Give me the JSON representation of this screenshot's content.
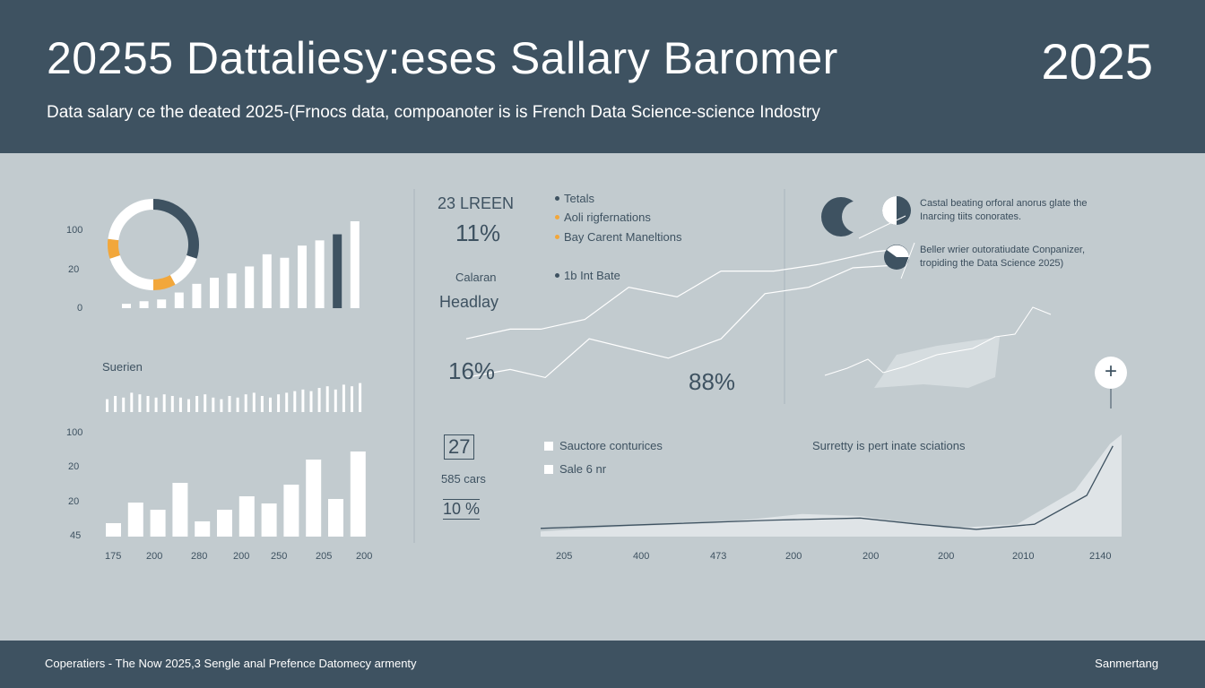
{
  "header": {
    "title": "20255 Dattaliesy:eses Sallary Baromer",
    "year": "2025",
    "subtitle": "Data salary ce the deated 2025-(Frnocs data, compoanoter is is French Data Science-science Indostry"
  },
  "footer": {
    "left": "Coperatiers - The Now 2025,3 Sengle anal Prefence Datomecy armenty",
    "right": "Sanmertang"
  },
  "colors": {
    "header_bg": "#3e5261",
    "page_bg": "#c2cbcf",
    "bar_white": "#ffffff",
    "bar_dark": "#3e5261",
    "accent_orange": "#f2a73b"
  },
  "left_panel": {
    "section_label": "Suerien",
    "top_axis_labels": [
      "100",
      "20",
      "0"
    ],
    "bottom_axis_labels": [
      "100",
      "20",
      "20",
      "45"
    ],
    "bottom_x_labels": [
      "175",
      "200",
      "280",
      "200",
      "250",
      "205",
      "200"
    ]
  },
  "middle_panel": {
    "stat1_label": "23 LREEN",
    "stat1_value": "11%",
    "label_calaran": "Calaran",
    "label_headlay": "Headlay",
    "stat_16": "16%",
    "stat_88": "88%",
    "legend": [
      {
        "label": "Tetals",
        "color": "#3e5261"
      },
      {
        "label": "Aoli rigfernations",
        "color": "#f2a73b"
      },
      {
        "label": "Bay Carent Maneltions",
        "color": "#f2a73b"
      }
    ],
    "legend_extra": "1b Int Bate",
    "stat27": "27",
    "cars_label": "585 cars",
    "stat10": "10 %",
    "check1": "Sauctore conturices",
    "check2": "Sale 6 nr"
  },
  "right_panel": {
    "note1": [
      "Castal beating orforal anorus glate the",
      "Inarcing tiits conorates."
    ],
    "note2": [
      "Beller wrier outoratiudate Conpanizer,",
      "tropiding the Data Science 2025)"
    ],
    "note3": "Surretty is pert inate sciations",
    "marker_label": "+",
    "bottom_x_labels": [
      "205",
      "400",
      "473",
      "200",
      "200",
      "200",
      "2010",
      "2140"
    ]
  },
  "chart_data": [
    {
      "type": "pie",
      "slices": [
        {
          "label": "dark",
          "value": 30,
          "color": "#3e5261"
        },
        {
          "label": "white",
          "value": 12,
          "color": "#ffffff"
        },
        {
          "label": "orange",
          "value": 8,
          "color": "#f2a73b"
        },
        {
          "label": "white",
          "value": 20,
          "color": "#ffffff"
        },
        {
          "label": "orange",
          "value": 7,
          "color": "#f2a73b"
        },
        {
          "label": "white",
          "value": 23,
          "color": "#ffffff"
        }
      ]
    },
    {
      "type": "bar",
      "values": [
        5,
        8,
        10,
        18,
        28,
        35,
        40,
        48,
        62,
        58,
        72,
        78,
        85,
        100
      ],
      "highlight_index": 12,
      "ylim": [
        0,
        100
      ]
    },
    {
      "type": "bar",
      "values": [
        40,
        50,
        45,
        60,
        55,
        50,
        45,
        55,
        50,
        45,
        40,
        50,
        55,
        45,
        40,
        50,
        45,
        55,
        60,
        50,
        45,
        55,
        60,
        65,
        70,
        65,
        75,
        80,
        70,
        85,
        80,
        90
      ]
    },
    {
      "type": "bar",
      "values": [
        15,
        38,
        30,
        60,
        17,
        30,
        45,
        37,
        58,
        86,
        42,
        95
      ],
      "ylim": [
        0,
        100
      ]
    },
    {
      "type": "line",
      "series": [
        {
          "values": [
            [
              0,
              36
            ],
            [
              10,
              42
            ],
            [
              17,
              42
            ],
            [
              27,
              48
            ],
            [
              37,
              68
            ],
            [
              48,
              62
            ],
            [
              58,
              78
            ],
            [
              70,
              78
            ],
            [
              80,
              82
            ],
            [
              93,
              90
            ],
            [
              100,
              92
            ]
          ]
        },
        {
          "values": [
            [
              0,
              12
            ],
            [
              10,
              17
            ],
            [
              18,
              12
            ],
            [
              28,
              36
            ],
            [
              37,
              30
            ],
            [
              46,
              24
            ],
            [
              58,
              36
            ],
            [
              68,
              64
            ],
            [
              78,
              68
            ],
            [
              88,
              80
            ],
            [
              100,
              82
            ]
          ]
        }
      ]
    },
    {
      "type": "area",
      "x": [
        205,
        400,
        473,
        200,
        200,
        200,
        2010,
        2140
      ],
      "series": [
        {
          "values": [
            [
              0,
              5
            ],
            [
              15,
              10
            ],
            [
              30,
              13
            ],
            [
              45,
              22
            ],
            [
              55,
              20
            ],
            [
              70,
              8
            ],
            [
              82,
              12
            ],
            [
              92,
              45
            ],
            [
              98,
              90
            ]
          ]
        }
      ]
    }
  ]
}
